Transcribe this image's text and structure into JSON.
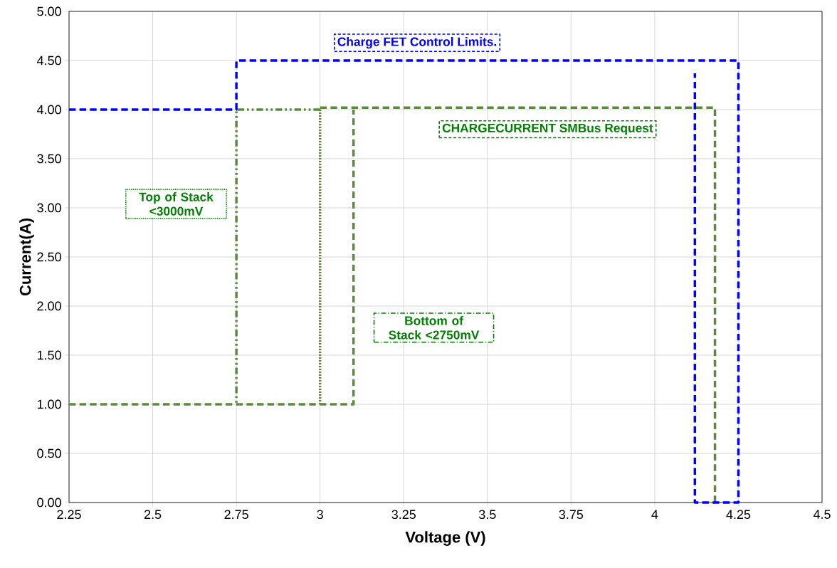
{
  "chart_data": {
    "type": "line",
    "xlabel": "Voltage (V)",
    "ylabel": "Current(A)",
    "xlim": [
      2.25,
      4.5
    ],
    "ylim": [
      0,
      5
    ],
    "xticks": [
      2.25,
      2.5,
      2.75,
      3,
      3.25,
      3.5,
      3.75,
      4,
      4.25,
      4.5
    ],
    "yticks": [
      {
        "value": 0,
        "label": "0.00"
      },
      {
        "value": 0.5,
        "label": "0.50"
      },
      {
        "value": 1,
        "label": "1.00"
      },
      {
        "value": 1.5,
        "label": "1.50"
      },
      {
        "value": 2,
        "label": "2.00"
      },
      {
        "value": 2.5,
        "label": "2.50"
      },
      {
        "value": 3,
        "label": "3.00"
      },
      {
        "value": 3.5,
        "label": "3.50"
      },
      {
        "value": 4,
        "label": "4.00"
      },
      {
        "value": 4.5,
        "label": "4.50"
      },
      {
        "value": 5,
        "label": "5.00"
      }
    ],
    "grid": true,
    "marker": "none",
    "series": [
      {
        "color": "#5b8a3c",
        "line_style": "dashed",
        "x": [
          2.25,
          3.1,
          3.1
        ],
        "values": [
          1,
          1,
          4.0
        ]
      },
      {
        "color": "#5b8a3c",
        "line_style": "dashed",
        "x": [
          3.0,
          4.18,
          4.18
        ],
        "values": [
          4.02,
          4.02,
          0
        ]
      },
      {
        "color": "#5b8a3c",
        "line_style": "dashdot",
        "x": [
          3.0,
          2.75,
          2.75
        ],
        "values": [
          4.0,
          4.0,
          1.0
        ]
      },
      {
        "color": "#5b8a3c",
        "line_style": "dotted",
        "x": [
          3.0,
          3.0
        ],
        "values": [
          4.0,
          1.0
        ]
      },
      {
        "color": "#0000ff",
        "line_style": "dashed",
        "x": [
          2.25,
          2.75,
          2.75,
          4.25,
          4.25,
          4.12,
          4.12
        ],
        "values": [
          4.0,
          4.0,
          4.5,
          4.5,
          0,
          0,
          4.37
        ]
      }
    ],
    "annotations": [
      "Charge FET Control Limits.",
      "CHARGECURRENT SMBus Request",
      "Top of Stack <3000mV",
      "Bottom of Stack <2750mV"
    ]
  }
}
